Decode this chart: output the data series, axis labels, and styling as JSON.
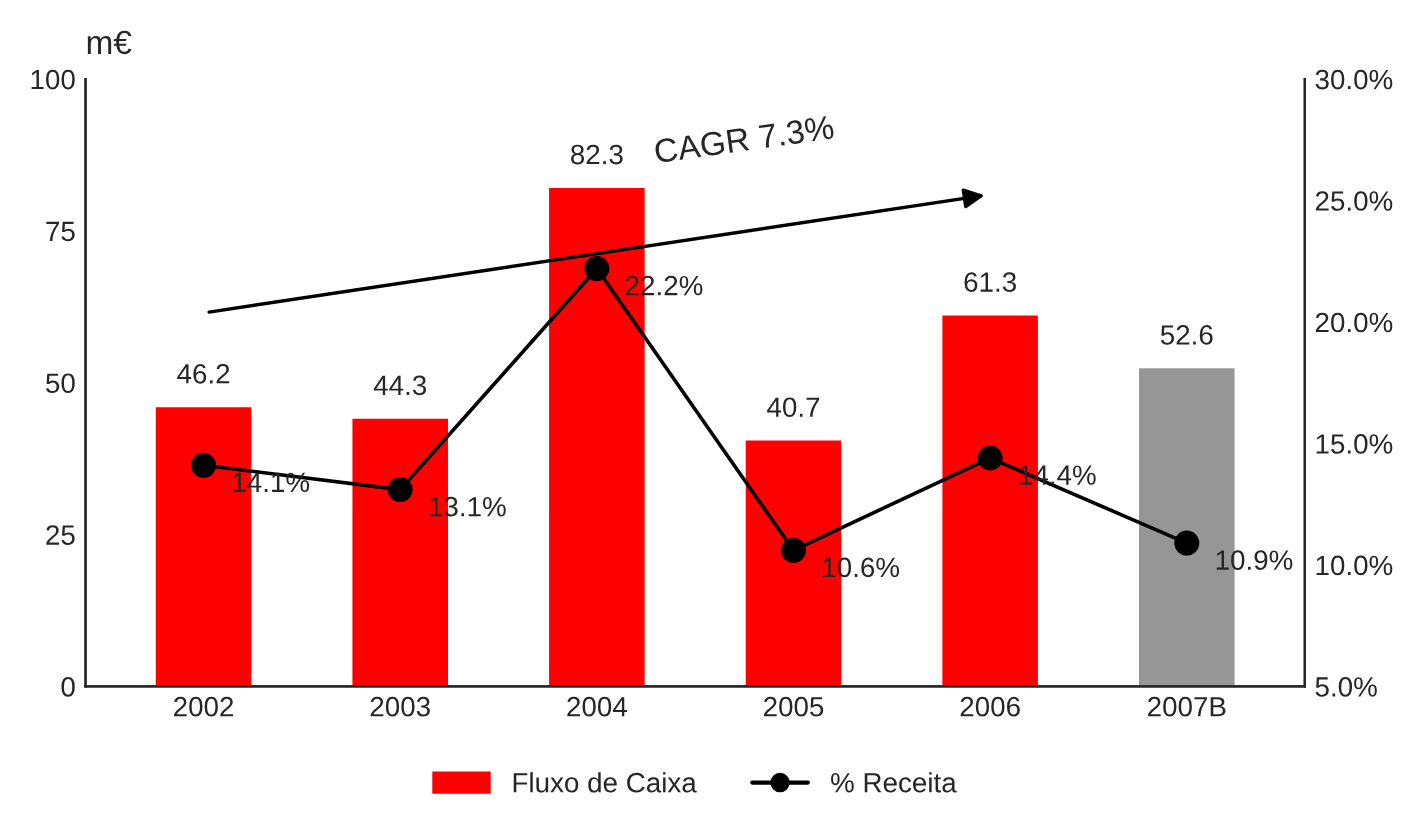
{
  "chart_data": {
    "type": "bar",
    "ylabel": "m€",
    "categories": [
      "2002",
      "2003",
      "2004",
      "2005",
      "2006",
      "2007B"
    ],
    "series": [
      {
        "name": "Fluxo de Caixa",
        "colors": [
          "#ff0000",
          "#ff0000",
          "#ff0000",
          "#ff0000",
          "#ff0000",
          "#969696"
        ],
        "values": [
          46.2,
          44.3,
          82.3,
          40.7,
          61.3,
          52.6
        ]
      },
      {
        "name": "% Receita",
        "type": "line",
        "axis": "y2",
        "color": "#000000",
        "values": [
          14.1,
          13.1,
          22.2,
          10.6,
          14.4,
          10.9
        ],
        "value_labels": [
          "14.1%",
          "13.1%",
          "22.2%",
          "10.6%",
          "14.4%",
          "10.9%"
        ]
      }
    ],
    "data_labels": true,
    "marker": "circle",
    "line_style": "solid",
    "grid": false,
    "legend": "bottom",
    "ylim": [
      0,
      100
    ],
    "yticks": [
      0,
      25,
      50,
      75,
      100
    ],
    "y2lim": [
      5,
      30
    ],
    "y2ticks": [
      {
        "value": 5,
        "label": "5.0%"
      },
      {
        "value": 10,
        "label": "10.0%"
      },
      {
        "value": 15,
        "label": "15.0%"
      },
      {
        "value": 20,
        "label": "20.0%"
      },
      {
        "value": 25,
        "label": "25.0%"
      },
      {
        "value": 30,
        "label": "30.0%"
      }
    ],
    "annotations": [
      "CAGR 7.3%"
    ]
  }
}
